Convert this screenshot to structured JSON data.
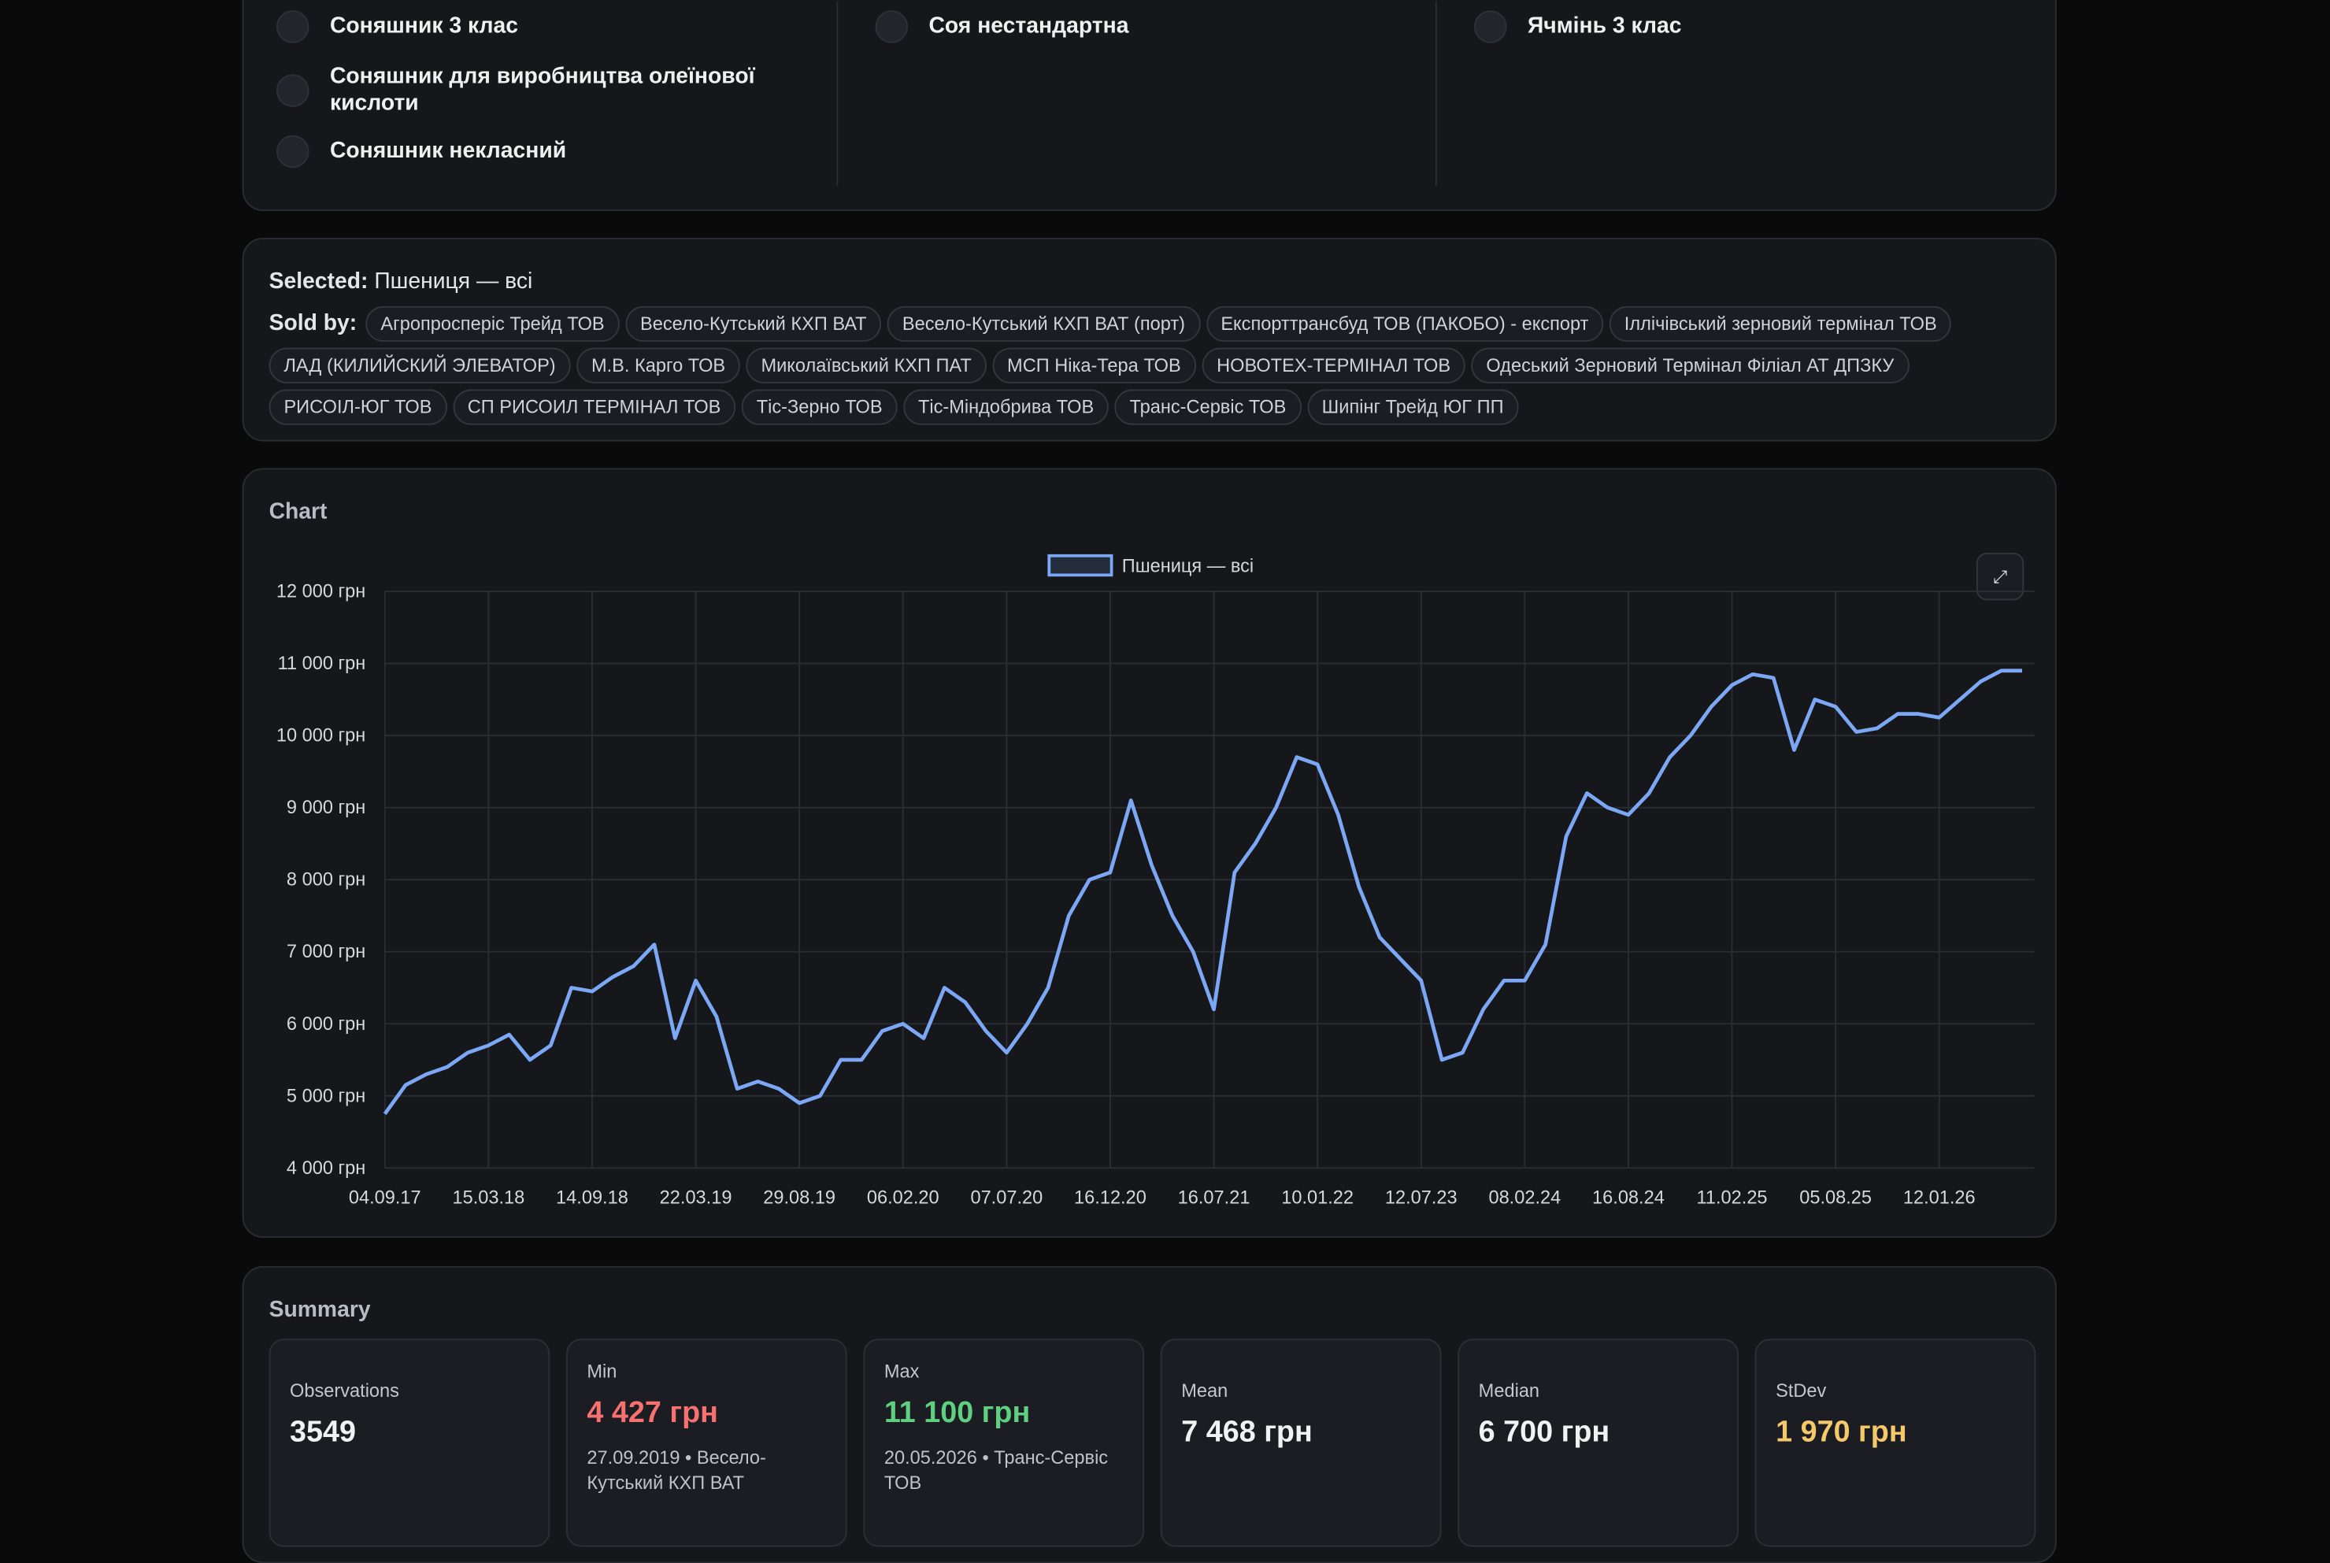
{
  "filters": {
    "columns": [
      [
        "Соняшник 3 клас",
        "Соняшник для виробництва олеїнової кислоти",
        "Соняшник некласний"
      ],
      [
        "Соя нестандартна"
      ],
      [
        "Ячмінь 3 клас"
      ]
    ]
  },
  "selection": {
    "selected_label": "Selected:",
    "selected": "Пшениця — всі",
    "sold_by_label": "Sold by:",
    "sold_by": [
      "Агропросперіс Трейд ТОВ",
      "Весело-Кутський КХП ВАТ",
      "Весело-Кутський КХП ВАТ (порт)",
      "Експорттрансбуд ТОВ (ПАКОБО) - експорт",
      "Іллічівський зерновий термінал ТОВ",
      "ЛАД (КИЛИЙСКИЙ ЭЛЕВАТОР)",
      "М.В. Карго ТОВ",
      "Миколаївський КХП ПАТ",
      "МСП Ніка-Тера ТОВ",
      "НОВОТЕХ-ТЕРМІНАЛ ТОВ",
      "Одеський Зерновий Термінал Філіал АТ ДПЗКУ",
      "РИСОІЛ-ЮГ ТОВ",
      "СП РИСОИЛ ТЕРМІНАЛ ТОВ",
      "Тіс-Зерно ТОВ",
      "Тіс-Міндобрива ТОВ",
      "Транс-Сервіс ТОВ",
      "Шипінг Трейд ЮГ ПП"
    ]
  },
  "chart_panel": {
    "title": "Chart",
    "expand": "⤢"
  },
  "chart_data": {
    "type": "line",
    "legend": "top",
    "x": [
      "04.09.17",
      null,
      null,
      null,
      null,
      "15.03.18",
      null,
      null,
      null,
      null,
      "14.09.18",
      null,
      null,
      null,
      null,
      "22.03.19",
      null,
      null,
      null,
      null,
      "29.08.19",
      null,
      null,
      null,
      null,
      "06.02.20",
      null,
      null,
      null,
      null,
      "07.07.20",
      null,
      null,
      null,
      null,
      "16.12.20",
      null,
      null,
      null,
      null,
      "16.07.21",
      null,
      null,
      null,
      null,
      "10.01.22",
      null,
      null,
      null,
      null,
      "12.07.23",
      null,
      null,
      null,
      null,
      "08.02.24",
      null,
      null,
      null,
      null,
      "16.08.24",
      null,
      null,
      null,
      null,
      "11.02.25",
      null,
      null,
      null,
      null,
      "05.08.25",
      null,
      null,
      null,
      null,
      "12.01.26",
      null,
      null,
      null,
      null
    ],
    "series": [
      {
        "name": "Пшениця — всі",
        "color": "#7ba7f5",
        "values": [
          4750,
          5150,
          5300,
          5400,
          5600,
          5700,
          5850,
          5500,
          5700,
          6500,
          6450,
          6650,
          6800,
          7100,
          5800,
          6600,
          6100,
          5100,
          5200,
          5100,
          4900,
          5000,
          5500,
          5500,
          5900,
          6000,
          5800,
          6500,
          6300,
          5900,
          5600,
          6000,
          6500,
          7500,
          8000,
          8100,
          9100,
          8200,
          7500,
          7000,
          6200,
          8100,
          8500,
          9000,
          9700,
          9600,
          8900,
          7900,
          7200,
          6900,
          6600,
          5500,
          5600,
          6200,
          6600,
          6600,
          7100,
          8600,
          9200,
          9000,
          8900,
          9200,
          9700,
          10000,
          10400,
          10700,
          10850,
          10800,
          9800,
          10500,
          10400,
          10050,
          10100,
          10300,
          10300,
          10250,
          10500,
          10750,
          10900,
          10900
        ]
      }
    ],
    "ylim": [
      4000,
      12000
    ],
    "yticks": [
      {
        "value": 4000,
        "label": "4 000 грн"
      },
      {
        "value": 5000,
        "label": "5 000 грн"
      },
      {
        "value": 6000,
        "label": "6 000 грн"
      },
      {
        "value": 7000,
        "label": "7 000 грн"
      },
      {
        "value": 8000,
        "label": "8 000 грн"
      },
      {
        "value": 9000,
        "label": "9 000 грн"
      },
      {
        "value": 10000,
        "label": "10 000 грн"
      },
      {
        "value": 11000,
        "label": "11 000 грн"
      },
      {
        "value": 12000,
        "label": "12 000 грн"
      }
    ],
    "grid": true
  },
  "summary": {
    "title": "Summary",
    "cards": [
      {
        "label": "Observations",
        "value": "3549",
        "color": "#f2f2f2"
      },
      {
        "label": "Min",
        "value": "4 427 грн",
        "note": "27.09.2019 • Весело-Кутський КХП ВАТ",
        "color": "#f87171"
      },
      {
        "label": "Max",
        "value": "11 100 грн",
        "note": "20.05.2026 • Транс-Сервіс ТОВ",
        "color": "#5fcf80"
      },
      {
        "label": "Mean",
        "value": "7 468 грн",
        "color": "#f2f2f2"
      },
      {
        "label": "Median",
        "value": "6 700 грн",
        "color": "#f2f2f2"
      },
      {
        "label": "StDev",
        "value": "1 970 грн",
        "color": "#f5c96a"
      }
    ]
  }
}
